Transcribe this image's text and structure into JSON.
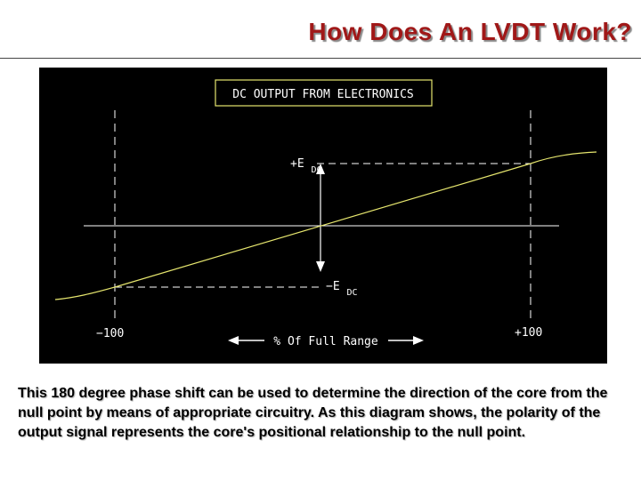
{
  "slide": {
    "title": "How Does An LVDT Work?"
  },
  "diagram": {
    "box_label": "DC OUTPUT FROM ELECTRONICS",
    "pos_label_main": "+E",
    "pos_label_sub": "DC",
    "neg_label_main": "−E",
    "neg_label_sub": "DC",
    "left_limit": "−100",
    "right_limit": "+100",
    "axis_label": "% Of Full Range",
    "colors": {
      "background": "#000000",
      "lines": "#ffffff",
      "curve": "#e6e66e",
      "box_border": "#e6e66e"
    }
  },
  "caption": {
    "text": "This 180 degree phase shift can be used to determine the direction of the core from the null point by means of appropriate circuitry. As this diagram shows, the polarity of the output signal represents the core's positional relationship to the null point."
  }
}
